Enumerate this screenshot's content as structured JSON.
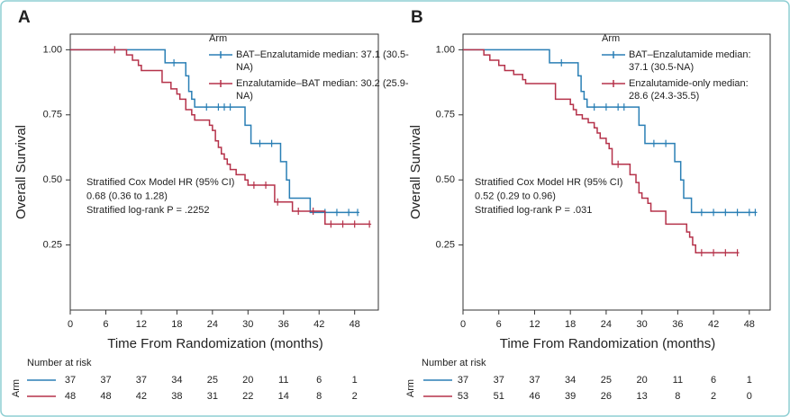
{
  "chart_data": [
    {
      "type": "step",
      "panel": "A",
      "xlabel": "Time From Randomization (months)",
      "ylabel": "Overall Survival",
      "xlim": [
        0,
        52
      ],
      "ylim": [
        0,
        1.06
      ],
      "xticks": [
        0,
        6,
        12,
        18,
        24,
        30,
        36,
        42,
        48
      ],
      "yticks": [
        {
          "value": 0.25,
          "label": "0.25"
        },
        {
          "value": 0.5,
          "label": "0.50"
        },
        {
          "value": 0.75,
          "label": "0.75"
        },
        {
          "value": 1.0,
          "label": "1.00"
        }
      ],
      "legend_title": "Arm",
      "annotation": [
        "Stratified Cox Model HR (95% CI)",
        "0.68 (0.36 to 1.28)",
        "Stratified log-rank P = .2252"
      ],
      "risk_title": "Number at risk",
      "risk_axis_label": "Arm",
      "series": [
        {
          "name": "BAT–Enzalutamide median: 37.1 (30.5-NA)",
          "color": "#2a7fb5",
          "x": [
            0,
            16,
            19.5,
            20,
            20.5,
            21,
            29.5,
            30.5,
            35.5,
            36.5,
            37,
            40.5,
            48.5
          ],
          "values": [
            1.0,
            0.95,
            0.9,
            0.84,
            0.81,
            0.78,
            0.71,
            0.64,
            0.57,
            0.5,
            0.43,
            0.375,
            0.375
          ],
          "censored_x": [
            17.5,
            23,
            25,
            26,
            27,
            32,
            34,
            43,
            45,
            47,
            48.5
          ],
          "censored_values": [
            0.95,
            0.78,
            0.78,
            0.78,
            0.78,
            0.64,
            0.64,
            0.375,
            0.375,
            0.375,
            0.375
          ],
          "at_risk": [
            37,
            37,
            37,
            34,
            25,
            20,
            11,
            6,
            1
          ]
        },
        {
          "name": "Enzalutamide–BAT median: 30.2 (25.9-NA)",
          "color": "#b5324a",
          "x": [
            0,
            9.5,
            10.5,
            11.5,
            12,
            15.5,
            17,
            18,
            18.5,
            19.5,
            20.5,
            21,
            23.5,
            24,
            24.5,
            25,
            25.5,
            26,
            26.5,
            27,
            28,
            29.5,
            30,
            34.5,
            37.5,
            43,
            50.5
          ],
          "values": [
            1.0,
            0.98,
            0.96,
            0.94,
            0.92,
            0.875,
            0.85,
            0.83,
            0.81,
            0.77,
            0.75,
            0.73,
            0.71,
            0.69,
            0.65,
            0.625,
            0.6,
            0.58,
            0.56,
            0.54,
            0.52,
            0.5,
            0.48,
            0.415,
            0.38,
            0.33,
            0.33
          ],
          "censored_x": [
            7.5,
            31,
            33,
            35,
            38.5,
            41,
            44,
            46,
            48,
            50.5
          ],
          "censored_values": [
            1.0,
            0.48,
            0.48,
            0.415,
            0.38,
            0.38,
            0.33,
            0.33,
            0.33,
            0.33
          ],
          "at_risk": [
            48,
            48,
            42,
            38,
            31,
            22,
            14,
            8,
            2
          ]
        }
      ]
    },
    {
      "type": "step",
      "panel": "B",
      "xlabel": "Time From Randomization (months)",
      "ylabel": "Overall Survival",
      "xlim": [
        0,
        51.5
      ],
      "ylim": [
        0,
        1.06
      ],
      "xticks": [
        0,
        6,
        12,
        18,
        24,
        30,
        36,
        42,
        48
      ],
      "yticks": [
        {
          "value": 0.25,
          "label": "0.25"
        },
        {
          "value": 0.5,
          "label": "0.50"
        },
        {
          "value": 0.75,
          "label": "0.75"
        },
        {
          "value": 1.0,
          "label": "1.00"
        }
      ],
      "legend_title": "Arm",
      "annotation": [
        "Stratified Cox Model HR (95% CI)",
        "0.52 (0.29 to 0.96)",
        "Stratified log-rank P = .031"
      ],
      "risk_title": "Number at risk",
      "risk_axis_label": "Arm",
      "series": [
        {
          "name": "BAT–Enzalutamide median: 37.1 (30.5-NA)",
          "color": "#2a7fb5",
          "x": [
            0,
            14.5,
            19.3,
            19.8,
            20.3,
            20.8,
            29.5,
            30.5,
            35.5,
            36.5,
            37,
            38.3,
            49
          ],
          "values": [
            1.0,
            0.95,
            0.9,
            0.84,
            0.81,
            0.78,
            0.71,
            0.64,
            0.57,
            0.5,
            0.43,
            0.375,
            0.375
          ],
          "censored_x": [
            16.5,
            22,
            24,
            26,
            27,
            32,
            34,
            40,
            42,
            44,
            46,
            48,
            49
          ],
          "censored_values": [
            0.95,
            0.78,
            0.78,
            0.78,
            0.78,
            0.64,
            0.64,
            0.375,
            0.375,
            0.375,
            0.375,
            0.375,
            0.375
          ],
          "at_risk": [
            37,
            37,
            37,
            34,
            25,
            20,
            11,
            6,
            1
          ]
        },
        {
          "name": "Enzalutamide-only median: 28.6 (24.3-35.5)",
          "color": "#b5324a",
          "x": [
            0,
            3.5,
            4.5,
            6,
            7,
            8.5,
            10,
            10.5,
            15.5,
            18,
            18.5,
            19,
            20,
            21,
            22,
            22.5,
            23,
            24,
            24.5,
            25,
            28,
            29,
            29.5,
            30,
            31,
            31.5,
            34,
            37.5,
            38,
            38.5,
            39,
            46
          ],
          "values": [
            1.0,
            0.98,
            0.96,
            0.94,
            0.92,
            0.905,
            0.885,
            0.87,
            0.81,
            0.79,
            0.77,
            0.75,
            0.735,
            0.72,
            0.7,
            0.68,
            0.66,
            0.64,
            0.62,
            0.56,
            0.52,
            0.49,
            0.45,
            0.43,
            0.41,
            0.38,
            0.33,
            0.3,
            0.28,
            0.25,
            0.22,
            0.22
          ],
          "censored_x": [
            26,
            40,
            42,
            44,
            46
          ],
          "censored_values": [
            0.56,
            0.22,
            0.22,
            0.22,
            0.22
          ],
          "at_risk": [
            53,
            51,
            46,
            39,
            26,
            13,
            8,
            2,
            0
          ]
        }
      ]
    }
  ]
}
